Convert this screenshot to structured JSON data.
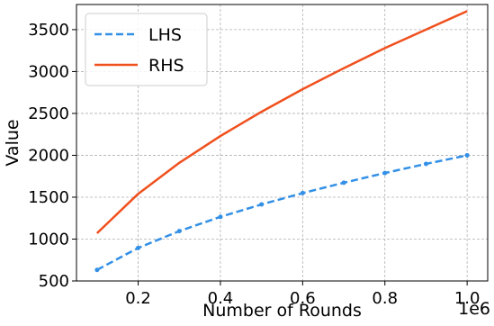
{
  "chart_data": {
    "type": "line",
    "xlabel": "Number of Rounds",
    "ylabel": "Value",
    "x_offset_label": "1e6",
    "x": [
      100000,
      200000,
      300000,
      400000,
      500000,
      600000,
      700000,
      800000,
      900000,
      1000000
    ],
    "series": [
      {
        "name": "LHS",
        "color": "#3390e6",
        "style": "dashed",
        "values": [
          632,
          894,
          1095,
          1265,
          1414,
          1549,
          1673,
          1789,
          1897,
          2000
        ]
      },
      {
        "name": "RHS",
        "color": "#f0501e",
        "style": "solid",
        "values": [
          1070,
          1540,
          1910,
          2230,
          2520,
          2790,
          3040,
          3280,
          3500,
          3720
        ]
      }
    ],
    "xlim": [
      50000,
      1050000
    ],
    "ylim": [
      500,
      3800
    ],
    "xticks": [
      200000,
      400000,
      600000,
      800000,
      1000000
    ],
    "xtick_labels": [
      "0.2",
      "0.4",
      "0.6",
      "0.8",
      "1.0"
    ],
    "yticks": [
      500,
      1000,
      1500,
      2000,
      2500,
      3000,
      3500
    ],
    "ytick_labels": [
      "500",
      "1000",
      "1500",
      "2000",
      "2500",
      "3000",
      "3500"
    ],
    "grid": true,
    "legend_position": "top-left"
  }
}
